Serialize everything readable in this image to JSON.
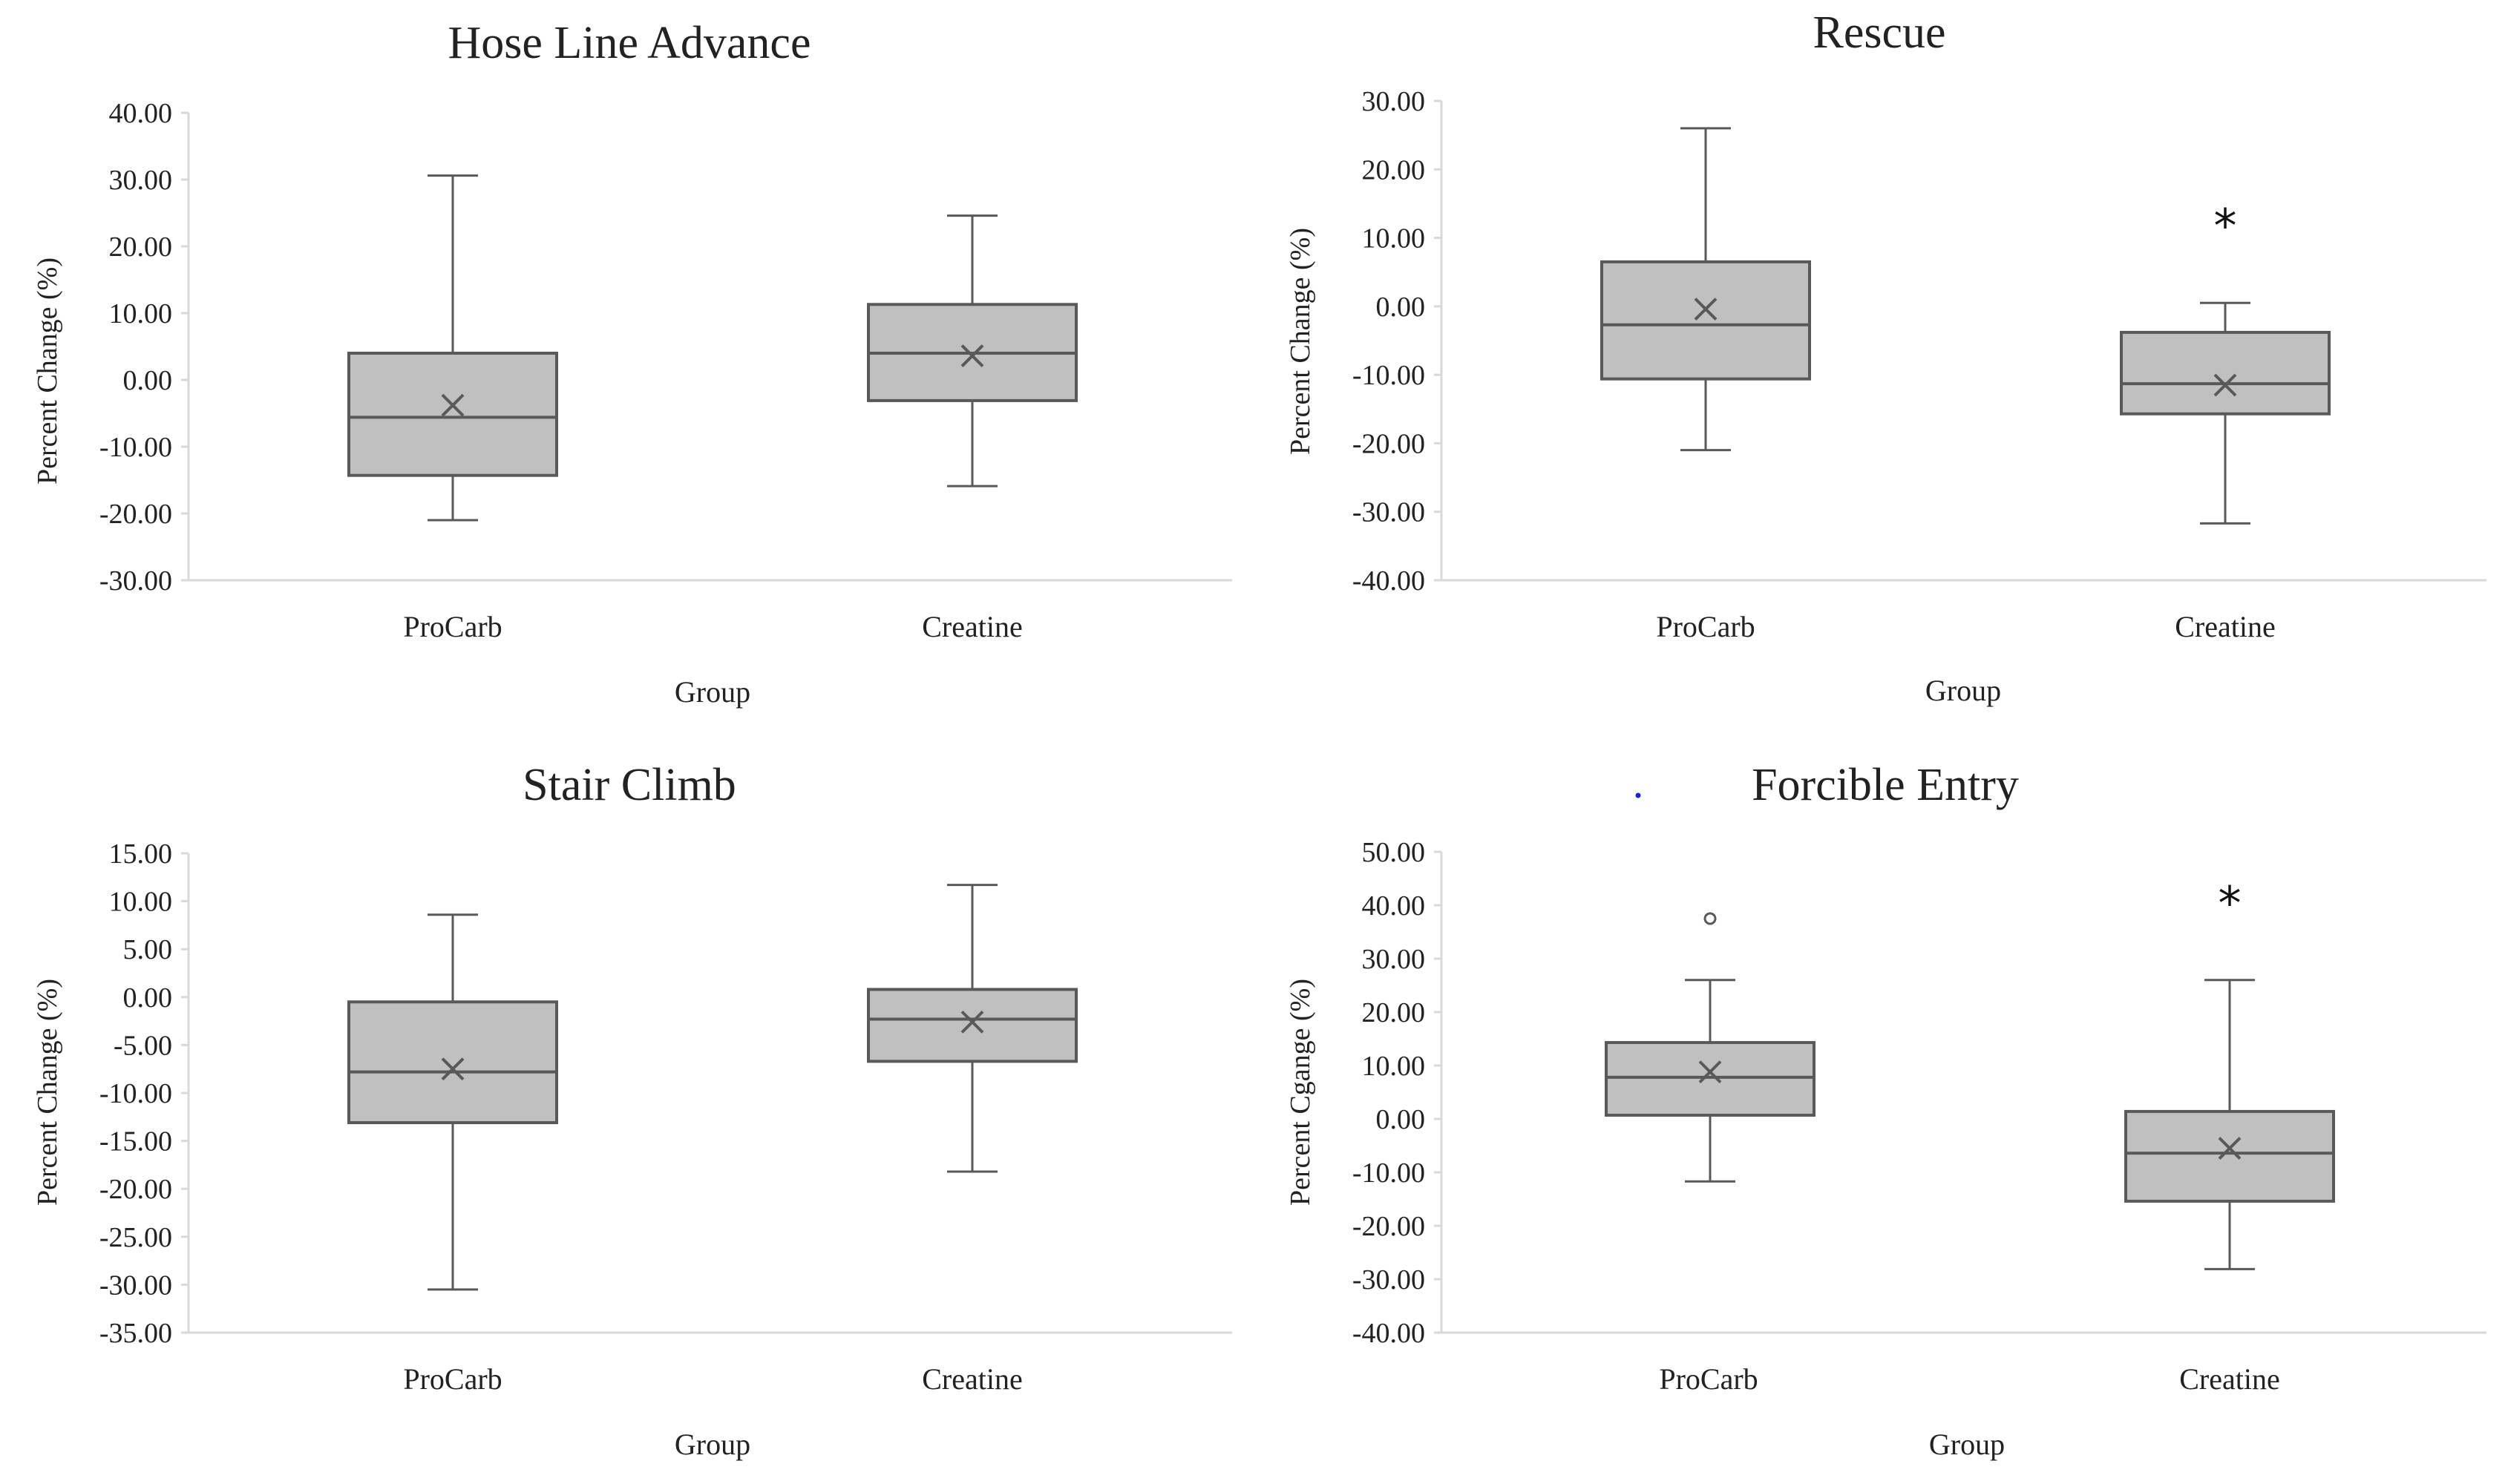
{
  "colors": {
    "box_fill": "#c0c0c0",
    "box_stroke": "#595959",
    "axis": "#d9d9d9",
    "text": "#222222",
    "stray_dot": "#1f1fd0"
  },
  "chart_data": [
    {
      "type": "box",
      "title": "Hose Line Advance",
      "xlabel": "Group",
      "ylabel": "Percent Change (%)",
      "ylim": [
        -30,
        40
      ],
      "yticks": [
        "40.00",
        "30.00",
        "20.00",
        "10.00",
        "0.00",
        "-10.00",
        "-20.00",
        "-30.00"
      ],
      "categories": [
        "ProCarb",
        "Creatine"
      ],
      "boxes": [
        {
          "name": "ProCarb",
          "min": -21.0,
          "q1": -14.3,
          "median": -5.6,
          "q3": 4.0,
          "max": 30.6,
          "mean": -3.8,
          "outliers": [],
          "annotation": ""
        },
        {
          "name": "Creatine",
          "min": -15.9,
          "q1": -3.1,
          "median": 4.0,
          "q3": 11.3,
          "max": 24.6,
          "mean": 3.6,
          "outliers": [],
          "annotation": ""
        }
      ]
    },
    {
      "type": "box",
      "title": "Rescue",
      "xlabel": "Group",
      "ylabel": "Percent Change (%)",
      "ylim": [
        -40,
        30
      ],
      "yticks": [
        "30.00",
        "20.00",
        "10.00",
        "0.00",
        "-10.00",
        "-20.00",
        "-30.00",
        "-40.00"
      ],
      "categories": [
        "ProCarb",
        "Creatine"
      ],
      "boxes": [
        {
          "name": "ProCarb",
          "min": -21.0,
          "q1": -10.6,
          "median": -2.7,
          "q3": 6.5,
          "max": 26.0,
          "mean": -0.4,
          "outliers": [],
          "annotation": ""
        },
        {
          "name": "Creatine",
          "min": -31.7,
          "q1": -15.7,
          "median": -11.3,
          "q3": -3.8,
          "max": 0.5,
          "mean": -11.5,
          "outliers": [],
          "annotation": "*"
        }
      ]
    },
    {
      "type": "box",
      "title": "Stair Climb",
      "xlabel": "Group",
      "ylabel": "Percent Change (%)",
      "ylim": [
        -35,
        15
      ],
      "yticks": [
        "15.00",
        "10.00",
        "5.00",
        "0.00",
        "-5.00",
        "-10.00",
        "-15.00",
        "-20.00",
        "-25.00",
        "-30.00",
        "-35.00"
      ],
      "categories": [
        "ProCarb",
        "Creatine"
      ],
      "boxes": [
        {
          "name": "ProCarb",
          "min": -30.5,
          "q1": -13.1,
          "median": -7.8,
          "q3": -0.5,
          "max": 8.6,
          "mean": -7.5,
          "outliers": [],
          "annotation": ""
        },
        {
          "name": "Creatine",
          "min": -18.2,
          "q1": -6.7,
          "median": -2.3,
          "q3": 0.8,
          "max": 11.7,
          "mean": -2.6,
          "outliers": [],
          "annotation": ""
        }
      ]
    },
    {
      "type": "box",
      "title": "Forcible Entry",
      "xlabel": "Group",
      "ylabel": "Percent Cgange (%)",
      "ylim": [
        -40,
        50
      ],
      "yticks": [
        "50.00",
        "40.00",
        "30.00",
        "20.00",
        "10.00",
        "0.00",
        "-10.00",
        "-20.00",
        "-30.00",
        "-40.00"
      ],
      "categories": [
        "ProCarb",
        "Creatine"
      ],
      "boxes": [
        {
          "name": "ProCarb",
          "min": -11.7,
          "q1": 0.7,
          "median": 7.8,
          "q3": 14.3,
          "max": 26.0,
          "mean": 8.8,
          "outliers": [
            37.5
          ],
          "annotation": ""
        },
        {
          "name": "Creatine",
          "min": -28.1,
          "q1": -15.4,
          "median": -6.4,
          "q3": 1.4,
          "max": 26.0,
          "mean": -5.5,
          "outliers": [],
          "annotation": "*"
        }
      ]
    }
  ]
}
